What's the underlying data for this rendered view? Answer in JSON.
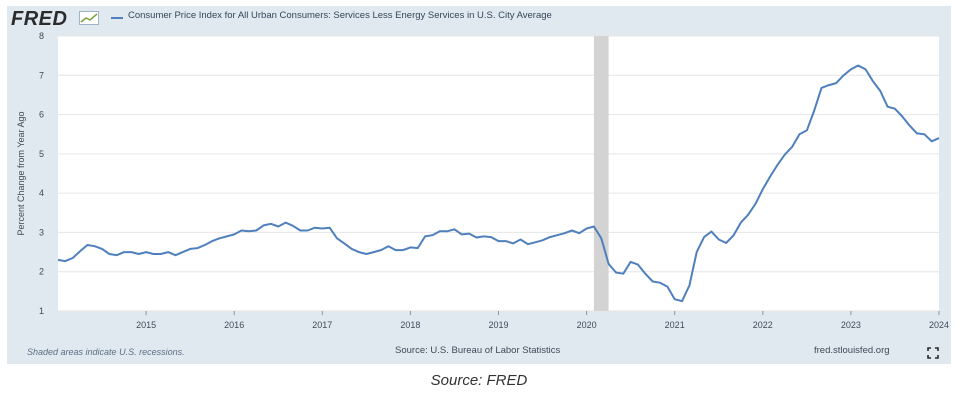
{
  "header": {
    "logo": "FRED",
    "series_title": "Consumer Price Index for All Urban Consumers: Services Less Energy Services in U.S. City Average"
  },
  "notes": {
    "recession": "Shaded areas indicate U.S. recessions.",
    "source": "Source: U.S. Bureau of Labor Statistics",
    "url": "fred.stlouisfed.org"
  },
  "caption": "Source: FRED",
  "colors": {
    "line": "#4f80bd",
    "recession": "#d3d3d3",
    "plot_bg": "#ffffff",
    "panel": "#e1e9f0",
    "grid": "#e6e6e6"
  },
  "icons": {
    "logo_graph": "chart-line-icon",
    "fullscreen": "expand-icon"
  },
  "chart_data": {
    "type": "line",
    "title": "Consumer Price Index for All Urban Consumers: Services Less Energy Services in U.S. City Average",
    "xlabel": "",
    "ylabel": "Percent Change from Year Ago",
    "xlim": [
      "2014-01",
      "2024-01"
    ],
    "ylim": [
      1,
      8
    ],
    "x_ticks": [
      "2015",
      "2016",
      "2017",
      "2018",
      "2019",
      "2020",
      "2021",
      "2022",
      "2023",
      "2024"
    ],
    "y_ticks": [
      1,
      2,
      3,
      4,
      5,
      6,
      7,
      8
    ],
    "grid": true,
    "recessions": [
      {
        "start": "2020-02",
        "end": "2020-04"
      }
    ],
    "series": [
      {
        "name": "Consumer Price Index for All Urban Consumers: Services Less Energy Services in U.S. City Average",
        "points": [
          [
            "2014-01",
            2.3
          ],
          [
            "2014-02",
            2.27
          ],
          [
            "2014-03",
            2.35
          ],
          [
            "2014-04",
            2.52
          ],
          [
            "2014-05",
            2.68
          ],
          [
            "2014-06",
            2.65
          ],
          [
            "2014-07",
            2.58
          ],
          [
            "2014-08",
            2.45
          ],
          [
            "2014-09",
            2.42
          ],
          [
            "2014-10",
            2.5
          ],
          [
            "2014-11",
            2.5
          ],
          [
            "2014-12",
            2.45
          ],
          [
            "2015-01",
            2.5
          ],
          [
            "2015-02",
            2.45
          ],
          [
            "2015-03",
            2.45
          ],
          [
            "2015-04",
            2.5
          ],
          [
            "2015-05",
            2.42
          ],
          [
            "2015-06",
            2.5
          ],
          [
            "2015-07",
            2.58
          ],
          [
            "2015-08",
            2.6
          ],
          [
            "2015-09",
            2.68
          ],
          [
            "2015-10",
            2.78
          ],
          [
            "2015-11",
            2.85
          ],
          [
            "2015-12",
            2.9
          ],
          [
            "2016-01",
            2.95
          ],
          [
            "2016-02",
            3.05
          ],
          [
            "2016-03",
            3.03
          ],
          [
            "2016-04",
            3.05
          ],
          [
            "2016-05",
            3.18
          ],
          [
            "2016-06",
            3.22
          ],
          [
            "2016-07",
            3.15
          ],
          [
            "2016-08",
            3.25
          ],
          [
            "2016-09",
            3.17
          ],
          [
            "2016-10",
            3.05
          ],
          [
            "2016-11",
            3.05
          ],
          [
            "2016-12",
            3.12
          ],
          [
            "2017-01",
            3.1
          ],
          [
            "2017-02",
            3.12
          ],
          [
            "2017-03",
            2.85
          ],
          [
            "2017-04",
            2.72
          ],
          [
            "2017-05",
            2.58
          ],
          [
            "2017-06",
            2.5
          ],
          [
            "2017-07",
            2.45
          ],
          [
            "2017-08",
            2.5
          ],
          [
            "2017-09",
            2.55
          ],
          [
            "2017-10",
            2.65
          ],
          [
            "2017-11",
            2.55
          ],
          [
            "2017-12",
            2.55
          ],
          [
            "2018-01",
            2.62
          ],
          [
            "2018-02",
            2.6
          ],
          [
            "2018-03",
            2.9
          ],
          [
            "2018-04",
            2.93
          ],
          [
            "2018-05",
            3.03
          ],
          [
            "2018-06",
            3.03
          ],
          [
            "2018-07",
            3.08
          ],
          [
            "2018-08",
            2.95
          ],
          [
            "2018-09",
            2.97
          ],
          [
            "2018-10",
            2.87
          ],
          [
            "2018-11",
            2.9
          ],
          [
            "2018-12",
            2.88
          ],
          [
            "2019-01",
            2.78
          ],
          [
            "2019-02",
            2.78
          ],
          [
            "2019-03",
            2.72
          ],
          [
            "2019-04",
            2.82
          ],
          [
            "2019-05",
            2.7
          ],
          [
            "2019-06",
            2.75
          ],
          [
            "2019-07",
            2.8
          ],
          [
            "2019-08",
            2.88
          ],
          [
            "2019-09",
            2.93
          ],
          [
            "2019-10",
            2.98
          ],
          [
            "2019-11",
            3.05
          ],
          [
            "2019-12",
            2.98
          ],
          [
            "2020-01",
            3.1
          ],
          [
            "2020-02",
            3.15
          ],
          [
            "2020-03",
            2.85
          ],
          [
            "2020-04",
            2.2
          ],
          [
            "2020-05",
            1.98
          ],
          [
            "2020-06",
            1.95
          ],
          [
            "2020-07",
            2.25
          ],
          [
            "2020-08",
            2.18
          ],
          [
            "2020-09",
            1.95
          ],
          [
            "2020-10",
            1.75
          ],
          [
            "2020-11",
            1.72
          ],
          [
            "2020-12",
            1.62
          ],
          [
            "2021-01",
            1.3
          ],
          [
            "2021-02",
            1.25
          ],
          [
            "2021-03",
            1.65
          ],
          [
            "2021-04",
            2.5
          ],
          [
            "2021-05",
            2.88
          ],
          [
            "2021-06",
            3.02
          ],
          [
            "2021-07",
            2.82
          ],
          [
            "2021-08",
            2.73
          ],
          [
            "2021-09",
            2.92
          ],
          [
            "2021-10",
            3.25
          ],
          [
            "2021-11",
            3.45
          ],
          [
            "2021-12",
            3.73
          ],
          [
            "2022-01",
            4.1
          ],
          [
            "2022-02",
            4.42
          ],
          [
            "2022-03",
            4.72
          ],
          [
            "2022-04",
            4.98
          ],
          [
            "2022-05",
            5.18
          ],
          [
            "2022-06",
            5.5
          ],
          [
            "2022-07",
            5.6
          ],
          [
            "2022-08",
            6.1
          ],
          [
            "2022-09",
            6.68
          ],
          [
            "2022-10",
            6.75
          ],
          [
            "2022-11",
            6.8
          ],
          [
            "2022-12",
            7.0
          ],
          [
            "2023-01",
            7.15
          ],
          [
            "2023-02",
            7.25
          ],
          [
            "2023-03",
            7.15
          ],
          [
            "2023-04",
            6.85
          ],
          [
            "2023-05",
            6.6
          ],
          [
            "2023-06",
            6.2
          ],
          [
            "2023-07",
            6.15
          ],
          [
            "2023-08",
            5.95
          ],
          [
            "2023-09",
            5.72
          ],
          [
            "2023-10",
            5.52
          ],
          [
            "2023-11",
            5.5
          ],
          [
            "2023-12",
            5.32
          ],
          [
            "2024-01",
            5.4
          ]
        ]
      }
    ]
  }
}
